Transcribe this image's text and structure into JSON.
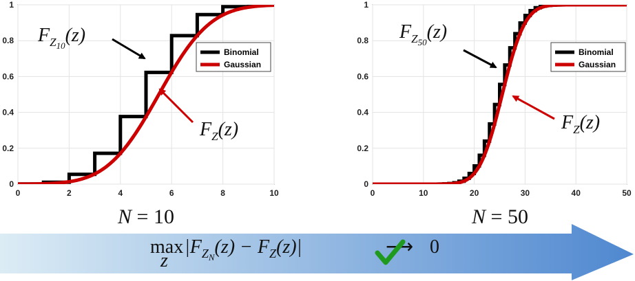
{
  "chart_data": [
    {
      "type": "line",
      "panel_caption": "N = 10",
      "N": 10,
      "xlim": [
        0,
        10
      ],
      "ylim": [
        0,
        1
      ],
      "xticks": [
        0,
        2,
        4,
        6,
        8,
        10
      ],
      "yticks": [
        0,
        0.2,
        0.4,
        0.6,
        0.8,
        1
      ],
      "grid": true,
      "legend_placement": "top-right",
      "series": [
        {
          "name": "Binomial",
          "kind": "step",
          "color": "#000000"
        },
        {
          "name": "Gaussian",
          "kind": "smooth",
          "color": "#cc0000"
        }
      ],
      "annotations": [
        {
          "label_base": "F",
          "label_sub": "Z",
          "label_subsub": "10",
          "label_arg": "(z)",
          "points_to": "Binomial",
          "arrow_color": "#000000"
        },
        {
          "label_base": "F",
          "label_sub": "Z",
          "label_subsub": "",
          "label_arg": "(z)",
          "points_to": "Gaussian",
          "arrow_color": "#cc0000"
        }
      ]
    },
    {
      "type": "line",
      "panel_caption": "N = 50",
      "N": 50,
      "xlim": [
        0,
        50
      ],
      "ylim": [
        0,
        1
      ],
      "xticks": [
        0,
        10,
        20,
        30,
        40,
        50
      ],
      "yticks": [
        0,
        0.2,
        0.4,
        0.6,
        0.8,
        1
      ],
      "grid": true,
      "legend_placement": "top-right",
      "series": [
        {
          "name": "Binomial",
          "kind": "step",
          "color": "#000000"
        },
        {
          "name": "Gaussian",
          "kind": "smooth",
          "color": "#cc0000"
        }
      ],
      "annotations": [
        {
          "label_base": "F",
          "label_sub": "Z",
          "label_subsub": "50",
          "label_arg": "(z)",
          "points_to": "Binomial",
          "arrow_color": "#000000"
        },
        {
          "label_base": "F",
          "label_sub": "Z",
          "label_subsub": "",
          "label_arg": "(z)",
          "points_to": "Gaussian",
          "arrow_color": "#cc0000"
        }
      ]
    }
  ],
  "bottom_banner": {
    "max_label": "max",
    "max_subscript": "z",
    "expression_left": "|F",
    "sub_Z": "Z",
    "sub_N": "N",
    "expression_mid": "(z) − F",
    "expression_right": "(z)|",
    "arrow": "⟶",
    "limit": "0",
    "gradient_start": "#dcecf5",
    "gradient_end": "#4f88d0",
    "check_color": "#1f9a1f"
  }
}
